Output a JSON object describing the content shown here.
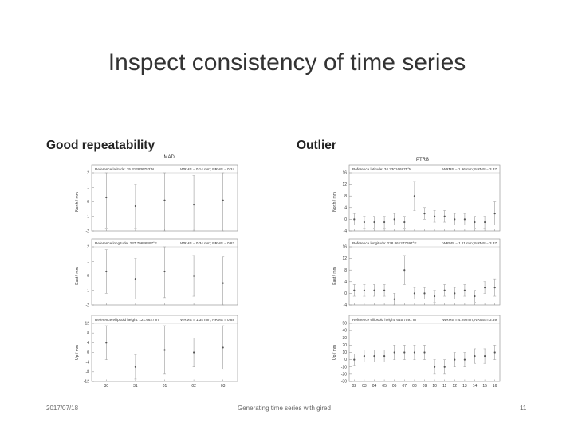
{
  "slide": {
    "title": "Inspect consistency of time series",
    "left_heading": "Good repeatability",
    "right_heading": "Outlier"
  },
  "footer": {
    "date": "2017/07/18",
    "center": "Generating time series with gired",
    "page": "11"
  },
  "chart_data": [
    {
      "type": "scatter",
      "title": "MADI",
      "xlabel": "",
      "x_tick_labels": [
        "30",
        "31",
        "01",
        "02",
        "03"
      ],
      "panels": [
        {
          "ylabel": "North / mm",
          "header_left": "Reference latitude: 35.312836753°N",
          "header_right": "WRMS = 0.14 mm; NRMS = 0.24",
          "ylim": [
            -2,
            2
          ],
          "y_ticks": [
            "2",
            "1",
            "0",
            "-1",
            "-2"
          ],
          "points": [
            {
              "x": 0,
              "y": 0.3
            },
            {
              "x": 1,
              "y": -0.3
            },
            {
              "x": 2,
              "y": 0.1
            },
            {
              "x": 3,
              "y": -0.2
            },
            {
              "x": 4,
              "y": 0.1
            }
          ],
          "errors": [
            2.1,
            1.5,
            2.1,
            2.0,
            2.3
          ]
        },
        {
          "ylabel": "East / mm",
          "header_left": "Reference longitude: 237.79686497°E",
          "header_right": "WRMS = 0.34 mm; NRMS = 0.82",
          "ylim": [
            -2,
            2
          ],
          "y_ticks": [
            "2",
            "1",
            "0",
            "-1",
            "-2"
          ],
          "points": [
            {
              "x": 0,
              "y": 0.3
            },
            {
              "x": 1,
              "y": -0.2
            },
            {
              "x": 2,
              "y": 0.3
            },
            {
              "x": 3,
              "y": 0.0
            },
            {
              "x": 4,
              "y": -0.5
            }
          ],
          "errors": [
            1.5,
            1.4,
            1.8,
            1.4,
            1.8
          ]
        },
        {
          "ylabel": "Up / mm",
          "header_left": "Reference ellipsoid height: 121.6627 m",
          "header_right": "WRMS = 1.34 mm; NRMS = 0.88",
          "ylim": [
            -12,
            12
          ],
          "y_ticks": [
            "12",
            "8",
            "4",
            "0",
            "-4",
            "-8",
            "-12"
          ],
          "points": [
            {
              "x": 0,
              "y": 4
            },
            {
              "x": 1,
              "y": -6
            },
            {
              "x": 2,
              "y": 1
            },
            {
              "x": 3,
              "y": 0
            },
            {
              "x": 4,
              "y": 2
            }
          ],
          "errors": [
            7,
            5,
            10,
            6,
            9
          ]
        }
      ]
    },
    {
      "type": "scatter",
      "title": "PTRB",
      "xlabel": "",
      "x_tick_labels": [
        "02",
        "03",
        "04",
        "05",
        "06",
        "07",
        "08",
        "09",
        "10",
        "11",
        "12",
        "13",
        "14",
        "15",
        "16"
      ],
      "panels": [
        {
          "ylabel": "North / mm",
          "header_left": "Reference latitude: 34.230166875°N",
          "header_right": "WRMS = 1.96 mm; NRMS = 3.37",
          "ylim": [
            -4,
            16
          ],
          "y_ticks": [
            "16",
            "12",
            "8",
            "4",
            "0",
            "-4"
          ],
          "points": [
            {
              "x": 0,
              "y": 0
            },
            {
              "x": 1,
              "y": -1
            },
            {
              "x": 2,
              "y": -1
            },
            {
              "x": 3,
              "y": -1
            },
            {
              "x": 4,
              "y": 0
            },
            {
              "x": 5,
              "y": -1
            },
            {
              "x": 6,
              "y": 8
            },
            {
              "x": 7,
              "y": 2
            },
            {
              "x": 8,
              "y": 1
            },
            {
              "x": 9,
              "y": 1
            },
            {
              "x": 10,
              "y": 0
            },
            {
              "x": 11,
              "y": 0
            },
            {
              "x": 12,
              "y": -1
            },
            {
              "x": 13,
              "y": -1
            },
            {
              "x": 14,
              "y": 2
            }
          ],
          "errors": [
            2,
            2,
            2,
            2,
            2,
            2,
            5,
            2,
            2,
            2,
            2,
            2,
            2,
            2,
            4
          ]
        },
        {
          "ylabel": "East / mm",
          "header_left": "Reference longitude: 238.861277697°E",
          "header_right": "WRMS = 1.11 mm; NRMS = 3.37",
          "ylim": [
            -4,
            16
          ],
          "y_ticks": [
            "16",
            "12",
            "8",
            "4",
            "0",
            "-4"
          ],
          "points": [
            {
              "x": 0,
              "y": 1
            },
            {
              "x": 1,
              "y": 1
            },
            {
              "x": 2,
              "y": 1
            },
            {
              "x": 3,
              "y": 1
            },
            {
              "x": 4,
              "y": -2
            },
            {
              "x": 5,
              "y": 8
            },
            {
              "x": 6,
              "y": 0
            },
            {
              "x": 7,
              "y": 0
            },
            {
              "x": 8,
              "y": -1
            },
            {
              "x": 9,
              "y": 1
            },
            {
              "x": 10,
              "y": 0
            },
            {
              "x": 11,
              "y": 1
            },
            {
              "x": 12,
              "y": -1
            },
            {
              "x": 13,
              "y": 2
            },
            {
              "x": 14,
              "y": 2
            }
          ],
          "errors": [
            2,
            2,
            2,
            2,
            2,
            5,
            2,
            2,
            2,
            2,
            2,
            2,
            2,
            2,
            3
          ]
        },
        {
          "ylabel": "Up / mm",
          "header_left": "Reference ellipsoid height: 645.7591 m",
          "header_right": "WRMS = 4.29 mm; NRMS = 3.39",
          "ylim": [
            -30,
            50
          ],
          "y_ticks": [
            "50",
            "40",
            "30",
            "20",
            "10",
            "0",
            "-10",
            "-20",
            "-30"
          ],
          "points": [
            {
              "x": 0,
              "y": 0
            },
            {
              "x": 1,
              "y": 5
            },
            {
              "x": 2,
              "y": 5
            },
            {
              "x": 3,
              "y": 5
            },
            {
              "x": 4,
              "y": 10
            },
            {
              "x": 5,
              "y": 10
            },
            {
              "x": 6,
              "y": 10
            },
            {
              "x": 7,
              "y": 10
            },
            {
              "x": 8,
              "y": -10
            },
            {
              "x": 9,
              "y": -10
            },
            {
              "x": 10,
              "y": 0
            },
            {
              "x": 11,
              "y": 0
            },
            {
              "x": 12,
              "y": 5
            },
            {
              "x": 13,
              "y": 5
            },
            {
              "x": 14,
              "y": 10
            }
          ],
          "errors": [
            8,
            8,
            8,
            8,
            10,
            10,
            10,
            10,
            10,
            10,
            10,
            10,
            10,
            10,
            10
          ]
        }
      ]
    }
  ]
}
